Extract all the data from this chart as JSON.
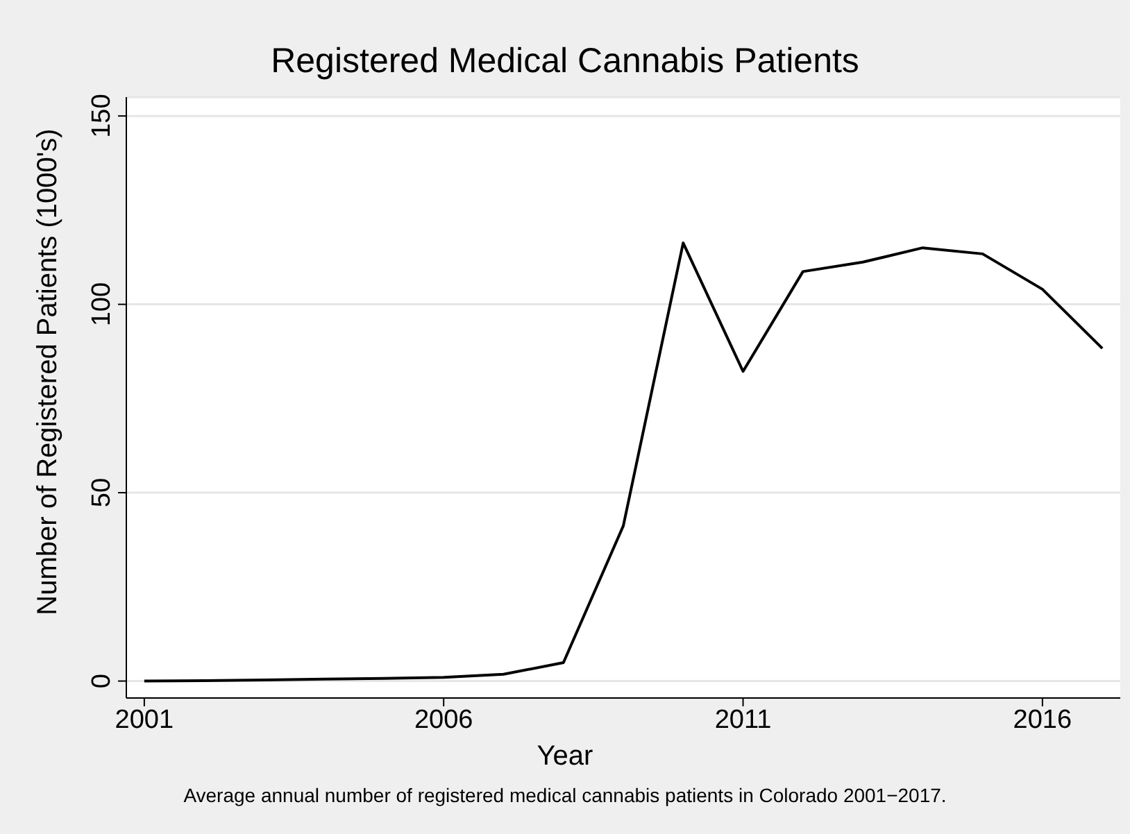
{
  "chart_data": {
    "type": "line",
    "title": "Registered Medical Cannabis Patients",
    "xlabel": "Year",
    "ylabel": "Number of Registered Patients (1000's)",
    "annotations": [
      "Average annual number of registered medical cannabis patients in Colorado 2001−2017."
    ],
    "x": [
      2001,
      2002,
      2003,
      2004,
      2005,
      2006,
      2007,
      2008,
      2009,
      2010,
      2011,
      2012,
      2013,
      2014,
      2015,
      2016,
      2017
    ],
    "series": [
      {
        "color": "#000000",
        "values": [
          0,
          0.1,
          0.3,
          0.5,
          0.7,
          1.0,
          1.8,
          4.9,
          41.2,
          116.3,
          82.2,
          108.7,
          111.2,
          115.0,
          113.4,
          104.0,
          88.3
        ]
      }
    ],
    "xlim": [
      2000.7,
      2017.3
    ],
    "xticks": [
      2001,
      2006,
      2011,
      2016
    ],
    "ylim": [
      -4.5,
      155
    ],
    "yticks": [
      0,
      50,
      100,
      150
    ],
    "grid": "y",
    "legend": false,
    "marker": "none",
    "line_style": "solid"
  }
}
